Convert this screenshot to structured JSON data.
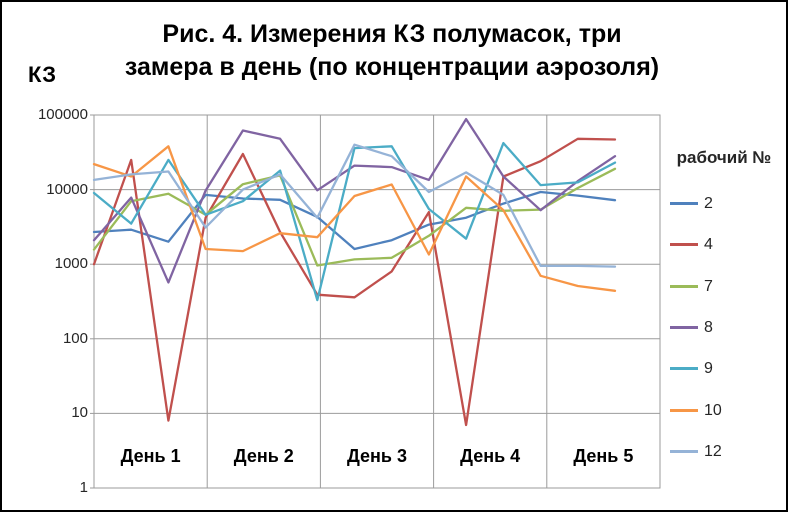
{
  "chart_data": {
    "type": "line",
    "title": "Рис. 4. Измерения КЗ полумасок, три замера в день (по концентрации аэрозоля)",
    "title_lines": [
      "Рис. 4. Измерения КЗ полумасок, три",
      "замера в день (по концентрации аэрозоля)"
    ],
    "y_axis_title": "КЗ",
    "y_scale": "log",
    "ylim": [
      1,
      100000
    ],
    "y_tick_labels": [
      "100000",
      "10000",
      "1000",
      "100",
      "10",
      "1"
    ],
    "categories": [
      "День 1",
      "День 2",
      "День 3",
      "День 4",
      "День 5"
    ],
    "measurements_per_day": 3,
    "grid": true,
    "legend_title": "рабочий №",
    "legend_position": "right",
    "gridline_color": "#9b9b9b",
    "series": [
      {
        "name": "2",
        "color": "#4F81BD",
        "values": [
          2700,
          2900,
          2000,
          8500,
          7600,
          7300,
          4300,
          1600,
          2100,
          3400,
          4200,
          6500,
          9300,
          8300,
          7200
        ]
      },
      {
        "name": "4",
        "color": "#C0504D",
        "values": [
          1000,
          25000,
          8,
          4200,
          30000,
          2700,
          390,
          360,
          800,
          5000,
          7,
          15000,
          24000,
          48000,
          47000
        ]
      },
      {
        "name": "7",
        "color": "#9BBB59",
        "values": [
          1570,
          7000,
          8800,
          4600,
          11800,
          15500,
          960,
          1160,
          1220,
          2400,
          5700,
          5200,
          5400,
          10500,
          19000
        ]
      },
      {
        "name": "8",
        "color": "#8064A2",
        "values": [
          2100,
          7800,
          570,
          9700,
          62000,
          48000,
          9800,
          21000,
          20000,
          13500,
          88000,
          15000,
          5300,
          13000,
          28000
        ]
      },
      {
        "name": "9",
        "color": "#4BACC6",
        "values": [
          9000,
          3500,
          25000,
          4600,
          7000,
          18000,
          330,
          36000,
          38000,
          5500,
          2200,
          42000,
          11500,
          12500,
          23000
        ]
      },
      {
        "name": "10",
        "color": "#F79646",
        "values": [
          22000,
          15000,
          38000,
          1600,
          1500,
          2600,
          2300,
          8200,
          11700,
          1350,
          15000,
          5300,
          700,
          510,
          440
        ]
      },
      {
        "name": "12",
        "color": "#95B3D7",
        "values": [
          13500,
          16000,
          17500,
          3100,
          10000,
          16000,
          4200,
          40000,
          28000,
          9300,
          17000,
          8500,
          950,
          950,
          930
        ]
      }
    ]
  }
}
